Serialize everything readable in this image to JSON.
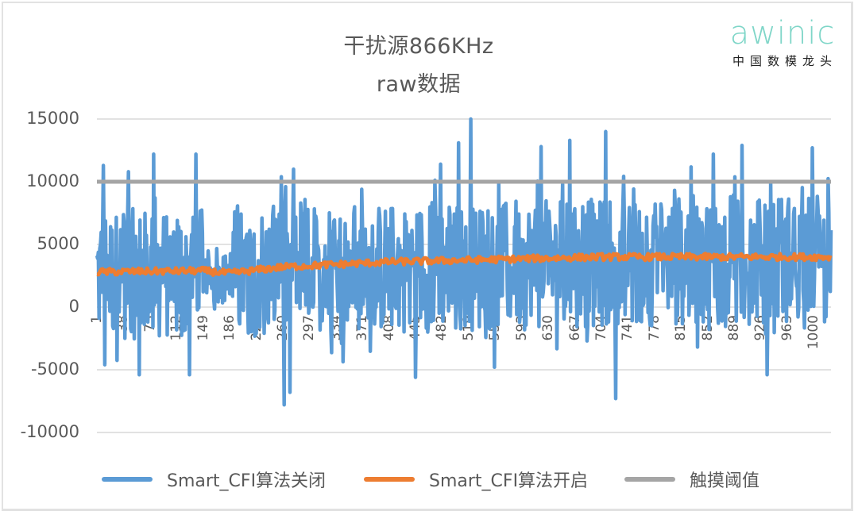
{
  "header": {
    "title_line1": "干扰源866KHz",
    "title_line2": "raw数据"
  },
  "logo": {
    "wordmark": "awinic",
    "tagline": "中国数模龙头",
    "color": "#7fd6c8"
  },
  "colors": {
    "series_off": "#5b9bd5",
    "series_on": "#ed7d31",
    "threshold": "#a5a5a5",
    "gridline": "#d9d9d9",
    "text": "#595959"
  },
  "legend": [
    {
      "label": "Smart_CFI算法关闭",
      "color": "#5b9bd5"
    },
    {
      "label": "Smart_CFI算法开启",
      "color": "#ed7d31"
    },
    {
      "label": "触摸阈值",
      "color": "#a5a5a5"
    }
  ],
  "chart_data": {
    "type": "line",
    "title": "干扰源866KHz raw数据",
    "xlabel": "",
    "ylabel": "",
    "ylim": [
      -10000,
      15000
    ],
    "yticks": [
      15000,
      10000,
      5000,
      0,
      -5000,
      -10000
    ],
    "ytick_labels": [
      "15000",
      "10000",
      "5000",
      "0",
      "-5000",
      "-10000"
    ],
    "x_range": [
      1,
      1024
    ],
    "xtick_labels": [
      "1",
      "38",
      "75",
      "112",
      "149",
      "186",
      "223",
      "260",
      "297",
      "334",
      "371",
      "408",
      "445",
      "482",
      "519",
      "556",
      "593",
      "630",
      "667",
      "704",
      "741",
      "778",
      "815",
      "852",
      "889",
      "926",
      "963",
      "1000"
    ],
    "grid": "horizontal",
    "legend_position": "bottom",
    "series": [
      {
        "name": "Smart_CFI算法关闭",
        "color": "#5b9bd5",
        "description": "Highly noisy raw signal oscillating roughly between -5000 and 12000; quiet dip around samples 149-186",
        "typical_range": [
          -4000,
          9000
        ],
        "notable_peaks": [
          {
            "x": 10,
            "y": 11300
          },
          {
            "x": 45,
            "y": 10800
          },
          {
            "x": 80,
            "y": 12200
          },
          {
            "x": 139,
            "y": 12200
          },
          {
            "x": 258,
            "y": 10400
          },
          {
            "x": 275,
            "y": 11000
          },
          {
            "x": 370,
            "y": 9400
          },
          {
            "x": 480,
            "y": 11400
          },
          {
            "x": 505,
            "y": 13100
          },
          {
            "x": 522,
            "y": 15000
          },
          {
            "x": 620,
            "y": 12800
          },
          {
            "x": 660,
            "y": 13300
          },
          {
            "x": 710,
            "y": 14000
          },
          {
            "x": 860,
            "y": 12200
          },
          {
            "x": 900,
            "y": 12900
          },
          {
            "x": 998,
            "y": 12700
          }
        ],
        "notable_troughs": [
          {
            "x": 12,
            "y": -4600
          },
          {
            "x": 60,
            "y": -5400
          },
          {
            "x": 130,
            "y": -5400
          },
          {
            "x": 262,
            "y": -7800
          },
          {
            "x": 270,
            "y": -6800
          },
          {
            "x": 445,
            "y": -5600
          },
          {
            "x": 555,
            "y": -4800
          },
          {
            "x": 724,
            "y": -7300
          },
          {
            "x": 935,
            "y": -5400
          }
        ]
      },
      {
        "name": "Smart_CFI算法开启",
        "color": "#ed7d31",
        "description": "Smooth filtered signal with small noise, slowly rising",
        "x": [
          1,
          149,
          186,
          260,
          334,
          408,
          482,
          556,
          630,
          704,
          778,
          852,
          926,
          1000,
          1024
        ],
        "values": [
          2800,
          2900,
          2700,
          3200,
          3400,
          3600,
          3700,
          3800,
          3900,
          4000,
          4000,
          4000,
          4000,
          4000,
          4000
        ]
      },
      {
        "name": "触摸阈值",
        "color": "#a5a5a5",
        "x": [
          1,
          1024
        ],
        "values": [
          10000,
          10000
        ]
      }
    ]
  }
}
